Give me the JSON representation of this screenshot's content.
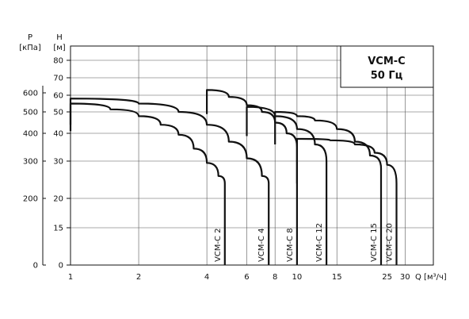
{
  "chart_data": {
    "type": "line",
    "title_lines": [
      "VCM-C",
      "50 Гц"
    ],
    "xlabel": "Q [м³/ч]",
    "y_left_label_lines": [
      "P",
      "[кПа]"
    ],
    "y_right_label_lines": [
      "H",
      "[м]"
    ],
    "x_scale": "log",
    "xlim": [
      1,
      40
    ],
    "x_ticks": [
      1,
      2,
      4,
      6,
      8,
      10,
      15,
      25,
      30
    ],
    "x_tick_labels": [
      "1",
      "2",
      "4",
      "6",
      "8",
      "10",
      "15",
      "25",
      "30"
    ],
    "h_ticks": [
      0,
      15,
      20,
      30,
      40,
      50,
      60,
      70,
      80
    ],
    "p_ticks": [
      0,
      200,
      300,
      400,
      500,
      600
    ],
    "grid": true,
    "series": [
      {
        "name": "VCM-C 2",
        "points": [
          [
            1,
            55
          ],
          [
            1.5,
            51.5
          ],
          [
            2,
            48
          ],
          [
            2.5,
            44
          ],
          [
            3,
            39.5
          ],
          [
            3.5,
            34.5
          ],
          [
            4,
            29.5
          ],
          [
            4.5,
            26
          ],
          [
            4.8,
            24
          ]
        ],
        "start_q": 4,
        "end_q": 4.8
      },
      {
        "name": "VCM-C 4",
        "points": [
          [
            1,
            58
          ],
          [
            2,
            55
          ],
          [
            3,
            50
          ],
          [
            4,
            44
          ],
          [
            5,
            37
          ],
          [
            6,
            31
          ],
          [
            7,
            26
          ],
          [
            7.5,
            24
          ]
        ],
        "start_q": 6,
        "end_q": 7.5
      },
      {
        "name": "VCM-C 8",
        "points": [
          [
            4,
            63
          ],
          [
            5,
            59
          ],
          [
            6,
            54
          ],
          [
            7,
            50
          ],
          [
            8,
            45
          ],
          [
            9,
            40
          ],
          [
            10,
            35
          ]
        ],
        "start_q": 4,
        "end_q": 10
      },
      {
        "name": "VCM-C 12",
        "points": [
          [
            6,
            53
          ],
          [
            8,
            48
          ],
          [
            10,
            42
          ],
          [
            12,
            36
          ],
          [
            13.5,
            30
          ]
        ],
        "start_q": 6,
        "end_q": 13.5
      },
      {
        "name": "VCM-C 15",
        "points": [
          [
            8,
            50
          ],
          [
            10,
            48
          ],
          [
            12,
            46
          ],
          [
            15,
            42
          ],
          [
            18,
            37
          ],
          [
            21,
            32
          ],
          [
            23.5,
            28
          ]
        ],
        "start_q": 8,
        "end_q": 23.5
      },
      {
        "name": "VCM-C 20",
        "points": [
          [
            10,
            38
          ],
          [
            14,
            37.5
          ],
          [
            18,
            36
          ],
          [
            22,
            33
          ],
          [
            25,
            29
          ],
          [
            27.5,
            24
          ]
        ],
        "start_q": 10,
        "end_q": 27.5
      }
    ]
  }
}
